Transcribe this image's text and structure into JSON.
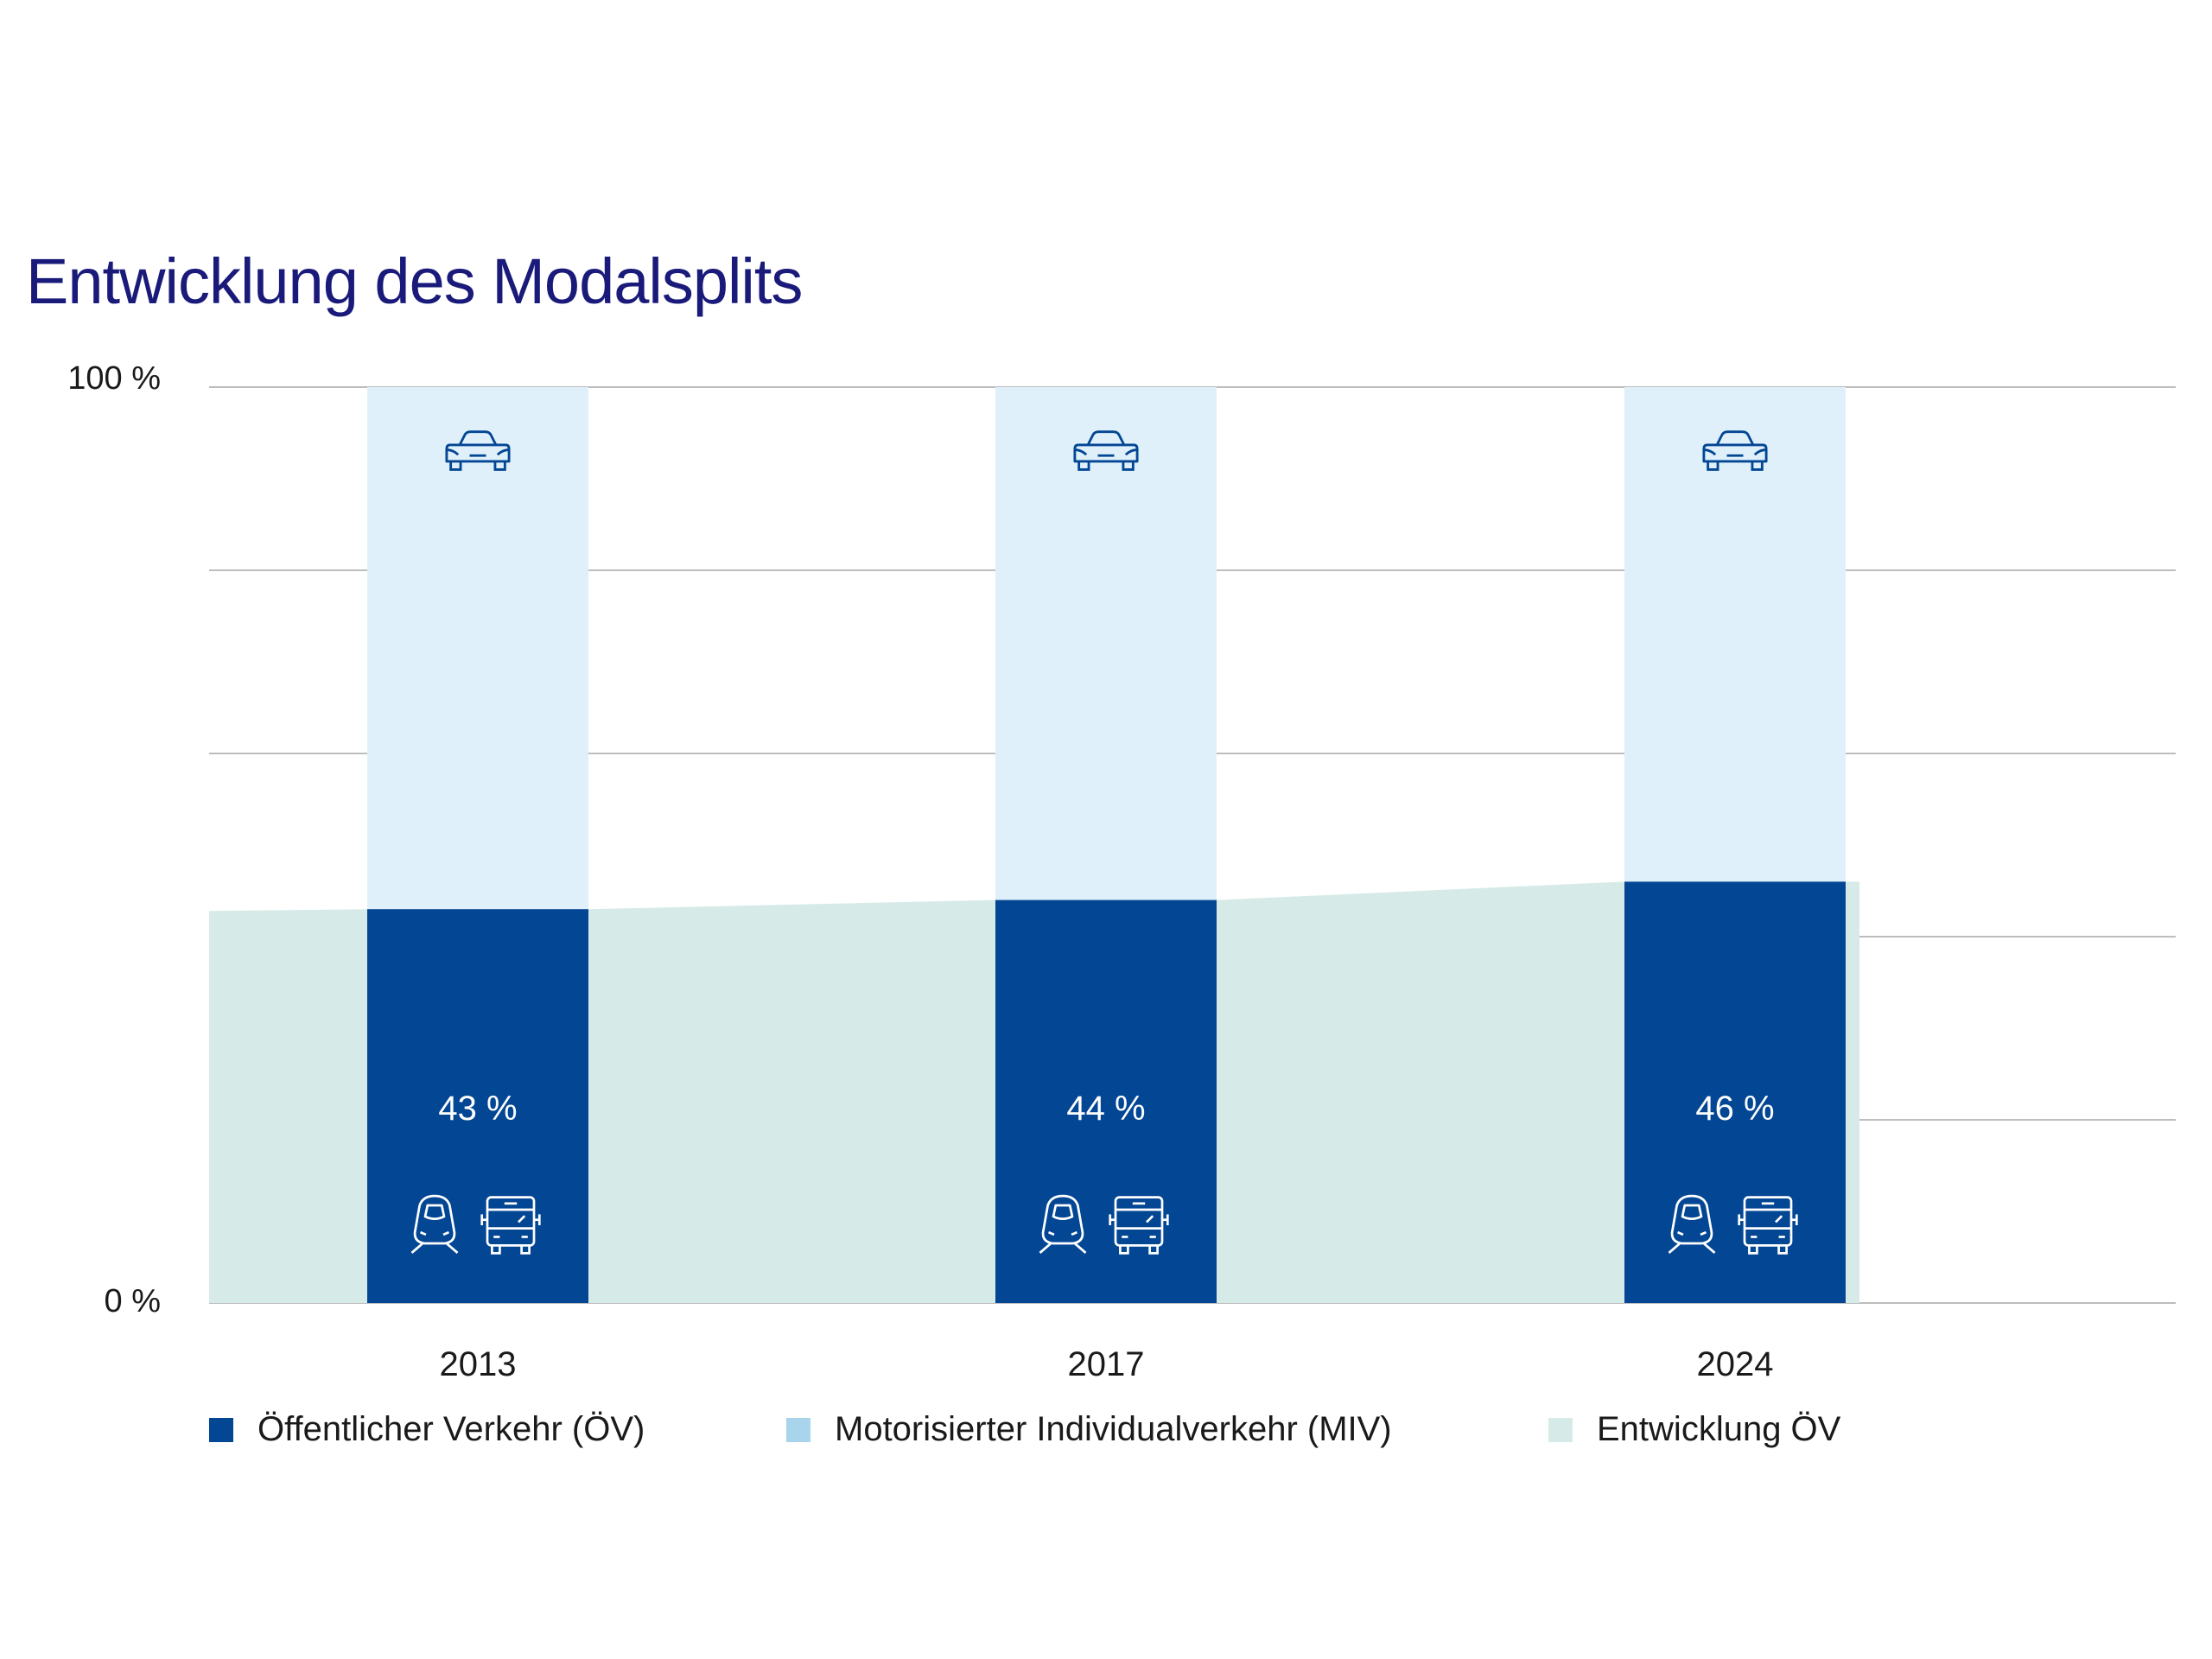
{
  "title": "Entwicklung des Modalsplits",
  "colors": {
    "oev": "#034694",
    "miv_bar": "#dff0fa",
    "miv_legend": "#a8d4ec",
    "trend": "#d6ebe8",
    "grid": "#bdbdbd",
    "title": "#1a1a7a"
  },
  "icons": {
    "miv": "car-icon",
    "oev": [
      "train-icon",
      "bus-icon"
    ]
  },
  "chart_data": {
    "type": "bar",
    "stacked": true,
    "title": "Entwicklung des Modalsplits",
    "categories": [
      "2013",
      "2017",
      "2024"
    ],
    "ylim": [
      0,
      100
    ],
    "y_tick_labels": [
      {
        "value": 100,
        "label": "100 %"
      },
      {
        "value": 0,
        "label": "0 %"
      }
    ],
    "gridlines": [
      0,
      20,
      40,
      60,
      80,
      100
    ],
    "grid": true,
    "series": [
      {
        "name": "Öffentlicher Verkehr (ÖV)",
        "values": [
          43,
          44,
          46
        ],
        "labels": [
          "43 %",
          "44 %",
          "46 %"
        ]
      },
      {
        "name": "Motorisierter Individualverkehr (MIV)",
        "values": [
          57,
          56,
          54
        ]
      }
    ],
    "area_series": {
      "name": "Entwicklung ÖV",
      "values": [
        43,
        44,
        46
      ]
    },
    "legend_position": "bottom"
  }
}
